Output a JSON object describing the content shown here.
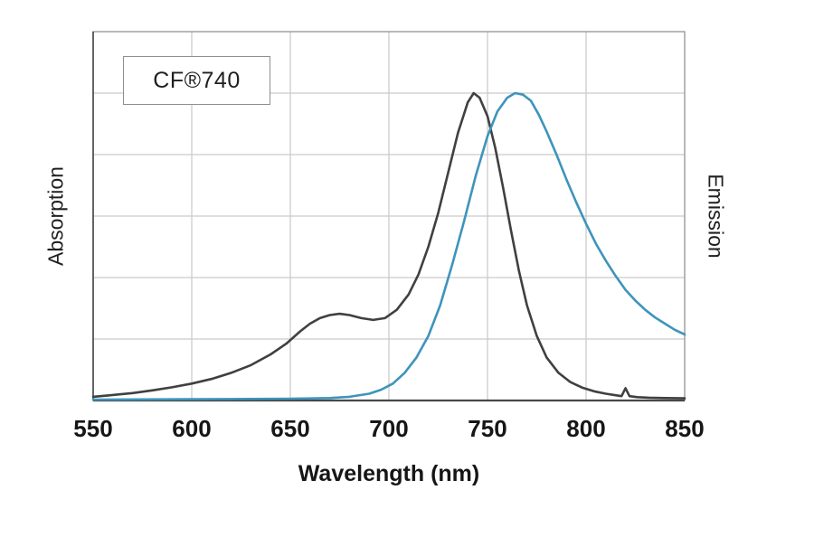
{
  "chart_data": {
    "type": "line",
    "title": "CF®740",
    "xlabel": "Wavelength (nm)",
    "ylabel_left": "Absorption",
    "ylabel_right": "Emission",
    "xlim": [
      550,
      850
    ],
    "ylim": [
      0,
      1.2
    ],
    "x_ticks": [
      550,
      600,
      650,
      700,
      750,
      800,
      850
    ],
    "y_grid_interval": 0.2,
    "grid": true,
    "legend_position": "none",
    "colors": {
      "absorption": "#404040",
      "emission": "#3e94bb",
      "grid": "#c9c9c9",
      "border": "#9a9a9a",
      "axis": "#474747"
    },
    "series": [
      {
        "name": "Absorption",
        "color": "#404040",
        "x": [
          550,
          560,
          570,
          580,
          590,
          600,
          610,
          620,
          630,
          640,
          648,
          655,
          660,
          665,
          670,
          675,
          680,
          686,
          692,
          698,
          704,
          710,
          715,
          720,
          725,
          730,
          735,
          740,
          743,
          746,
          750,
          754,
          758,
          762,
          766,
          770,
          775,
          780,
          786,
          792,
          798,
          804,
          810,
          815,
          818,
          820,
          822,
          826,
          832,
          840,
          850
        ],
        "y": [
          0.012,
          0.018,
          0.024,
          0.033,
          0.043,
          0.055,
          0.07,
          0.09,
          0.115,
          0.15,
          0.185,
          0.225,
          0.25,
          0.268,
          0.278,
          0.282,
          0.278,
          0.268,
          0.262,
          0.268,
          0.295,
          0.345,
          0.41,
          0.5,
          0.61,
          0.74,
          0.87,
          0.97,
          1.0,
          0.985,
          0.925,
          0.82,
          0.69,
          0.55,
          0.42,
          0.31,
          0.21,
          0.14,
          0.09,
          0.06,
          0.042,
          0.03,
          0.022,
          0.017,
          0.014,
          0.04,
          0.014,
          0.011,
          0.009,
          0.008,
          0.007
        ]
      },
      {
        "name": "Emission",
        "color": "#3e94bb",
        "x": [
          550,
          600,
          650,
          670,
          680,
          690,
          696,
          702,
          708,
          714,
          720,
          726,
          732,
          738,
          744,
          750,
          755,
          760,
          764,
          768,
          772,
          776,
          780,
          785,
          790,
          795,
          800,
          805,
          810,
          815,
          820,
          825,
          830,
          835,
          840,
          845,
          850
        ],
        "y": [
          0.003,
          0.004,
          0.006,
          0.008,
          0.012,
          0.022,
          0.035,
          0.055,
          0.09,
          0.14,
          0.21,
          0.31,
          0.44,
          0.58,
          0.73,
          0.86,
          0.94,
          0.985,
          1.0,
          0.995,
          0.975,
          0.93,
          0.875,
          0.8,
          0.72,
          0.645,
          0.575,
          0.51,
          0.455,
          0.405,
          0.36,
          0.325,
          0.295,
          0.27,
          0.25,
          0.23,
          0.215
        ]
      }
    ]
  }
}
